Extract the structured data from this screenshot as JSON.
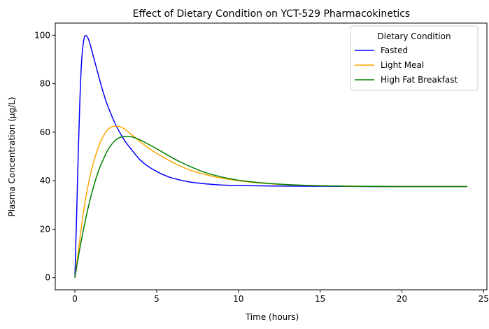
{
  "chart_data": {
    "type": "line",
    "title": "Effect of Dietary Condition on YCT-529 Pharmacokinetics",
    "xlabel": "Time (hours)",
    "ylabel": "Plasma Concentration (µg/L)",
    "xlim": [
      -1.2,
      25.2
    ],
    "ylim": [
      -5,
      105
    ],
    "x_ticks": [
      0,
      5,
      10,
      15,
      20,
      25
    ],
    "y_ticks": [
      0,
      20,
      40,
      60,
      80,
      100
    ],
    "grid": false,
    "legend": {
      "title": "Dietary Condition",
      "placement": "top-right"
    },
    "series": [
      {
        "name": "Fasted",
        "color": "#0000ff",
        "x": [
          0,
          0.1,
          0.2,
          0.3,
          0.4,
          0.5,
          0.6,
          0.7,
          0.8,
          0.9,
          1.0,
          1.2,
          1.4,
          1.6,
          1.8,
          2.0,
          2.5,
          3.0,
          3.5,
          4.0,
          4.5,
          5.0,
          5.5,
          6.0,
          7.0,
          8.0,
          9.0,
          10,
          12,
          15,
          18,
          21,
          24
        ],
        "y": [
          0,
          24,
          50,
          72,
          88,
          96,
          99.5,
          99.8,
          98.8,
          97,
          94.5,
          89.5,
          84.5,
          79.5,
          75,
          71,
          63,
          57,
          52.5,
          48.5,
          45.8,
          43.8,
          42.2,
          41,
          39.5,
          38.7,
          38.2,
          38,
          37.8,
          37.7,
          37.6,
          37.6,
          37.6
        ]
      },
      {
        "name": "Light Meal",
        "color": "#ffa500",
        "x": [
          0,
          0.25,
          0.5,
          0.75,
          1.0,
          1.25,
          1.5,
          1.75,
          2.0,
          2.25,
          2.5,
          2.75,
          3.0,
          3.25,
          3.5,
          4.0,
          4.5,
          5.0,
          6.0,
          7.0,
          8.0,
          9.0,
          10,
          11,
          12,
          13,
          14,
          15,
          17,
          20,
          24
        ],
        "y": [
          0,
          13,
          26,
          36,
          44,
          50,
          55,
          58.5,
          61,
          62.2,
          62.5,
          62.3,
          61.5,
          60.2,
          58.8,
          56,
          53.5,
          51.3,
          47.5,
          44.5,
          42.5,
          41,
          40,
          39.2,
          38.7,
          38.3,
          38.1,
          37.9,
          37.7,
          37.6,
          37.6
        ]
      },
      {
        "name": "High Fat Breakfast",
        "color": "#008000",
        "x": [
          0,
          0.25,
          0.5,
          0.75,
          1.0,
          1.25,
          1.5,
          1.75,
          2.0,
          2.25,
          2.5,
          2.75,
          3.0,
          3.25,
          3.5,
          3.75,
          4.0,
          4.5,
          5.0,
          6.0,
          7.0,
          8.0,
          9.0,
          10,
          11,
          12,
          13,
          14,
          15,
          17,
          20,
          24
        ],
        "y": [
          0,
          10,
          19,
          27,
          34,
          40,
          45,
          49,
          52.5,
          55,
          56.8,
          57.8,
          58.2,
          58.3,
          58,
          57.5,
          56.8,
          55,
          53.2,
          49.3,
          46,
          43.3,
          41.5,
          40.2,
          39.4,
          38.8,
          38.4,
          38.1,
          37.9,
          37.7,
          37.6,
          37.6
        ]
      }
    ]
  }
}
